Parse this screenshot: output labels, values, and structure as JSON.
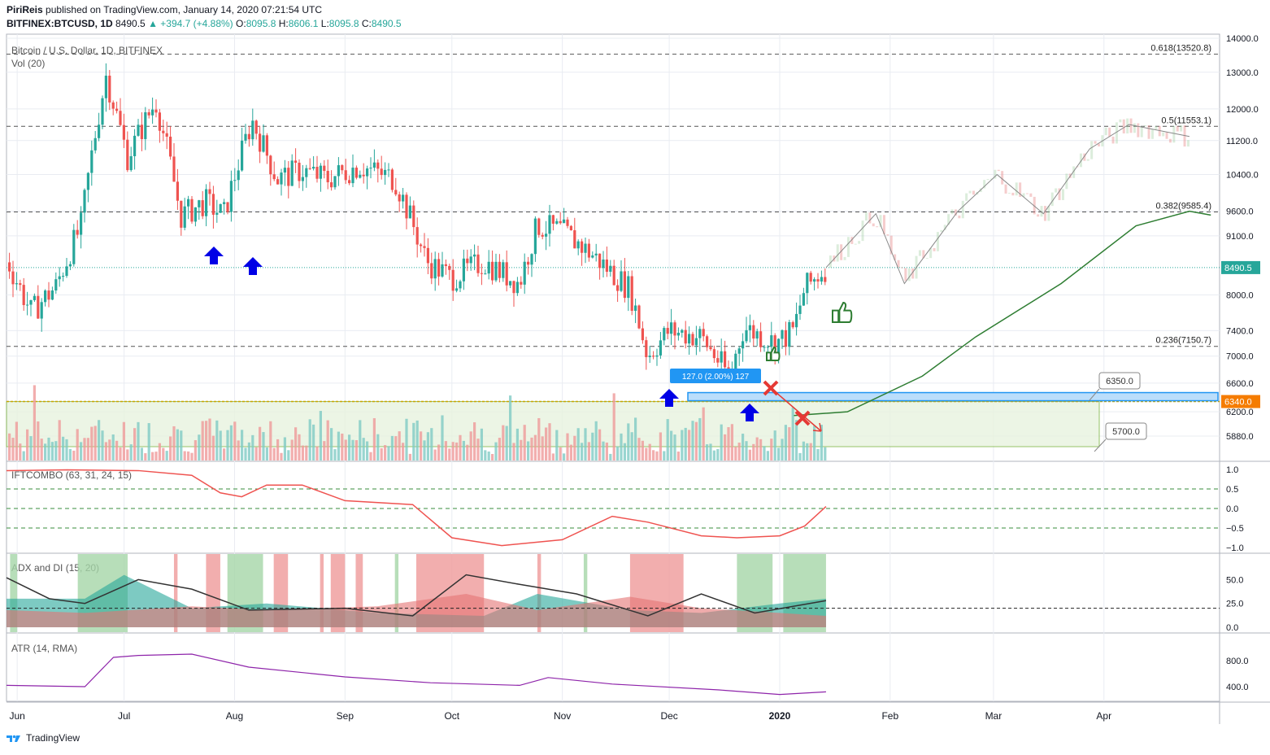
{
  "header": {
    "author": "PiriReis",
    "published": "published on TradingView.com, January 14, 2020 07:21:54 UTC",
    "symbol_line": "BITFINEX:BTCUSD, 1D",
    "last": "8490.5",
    "change": "▲ +394.7 (+4.88%)",
    "o_label": "O:",
    "o": "8095.8",
    "h_label": "H:",
    "h": "8606.1",
    "l_label": "L:",
    "l": "8095.8",
    "c_label": "C:",
    "c": "8490.5"
  },
  "footer": {
    "brand": "TradingView"
  },
  "colors": {
    "up": "#26a69a",
    "down": "#ef5350",
    "grid": "#e9ecf2",
    "accent": "#2196f3"
  },
  "chart_data": [
    {
      "type": "candlestick",
      "title": "Bitcoin / U.S. Dollar, 1D, BITFINEX",
      "volume_label": "Vol (20)",
      "x_ticks": [
        "Jun",
        "Jul",
        "Aug",
        "Sep",
        "Oct",
        "Nov",
        "Dec",
        "2020",
        "Feb",
        "Mar",
        "Apr"
      ],
      "y_ticks": [
        14000,
        13000,
        12000,
        11200,
        10400,
        9600,
        9100,
        8000,
        7400,
        7000,
        6600,
        6200,
        5880
      ],
      "ylim": [
        5600,
        14200
      ],
      "close_path": [
        [
          "2019-05-29",
          8650
        ],
        [
          "2019-06-05",
          7700
        ],
        [
          "2019-06-12",
          8150
        ],
        [
          "2019-06-19",
          9300
        ],
        [
          "2019-06-26",
          12900
        ],
        [
          "2019-07-02",
          10800
        ],
        [
          "2019-07-10",
          12200
        ],
        [
          "2019-07-17",
          9500
        ],
        [
          "2019-07-24",
          9800
        ],
        [
          "2019-07-29",
          9500
        ],
        [
          "2019-08-06",
          11700
        ],
        [
          "2019-08-13",
          10300
        ],
        [
          "2019-08-20",
          10500
        ],
        [
          "2019-08-27",
          10300
        ],
        [
          "2019-09-05",
          10600
        ],
        [
          "2019-09-15",
          10300
        ],
        [
          "2019-09-24",
          8600
        ],
        [
          "2019-10-01",
          8300
        ],
        [
          "2019-10-10",
          8600
        ],
        [
          "2019-10-20",
          8200
        ],
        [
          "2019-10-25",
          9300
        ],
        [
          "2019-11-01",
          9200
        ],
        [
          "2019-11-10",
          8700
        ],
        [
          "2019-11-20",
          8100
        ],
        [
          "2019-11-25",
          7000
        ],
        [
          "2019-12-01",
          7400
        ],
        [
          "2019-12-10",
          7300
        ],
        [
          "2019-12-18",
          6700
        ],
        [
          "2019-12-22",
          7450
        ],
        [
          "2019-12-31",
          7200
        ],
        [
          "2020-01-05",
          7400
        ],
        [
          "2020-01-08",
          8100
        ],
        [
          "2020-01-14",
          8490.5
        ]
      ],
      "projection_path": [
        [
          "2020-01-14",
          8490.5
        ],
        [
          "2020-01-28",
          9550
        ],
        [
          "2020-02-05",
          8200
        ],
        [
          "2020-02-20",
          9600
        ],
        [
          "2020-03-02",
          10400
        ],
        [
          "2020-03-15",
          9550
        ],
        [
          "2020-03-28",
          11000
        ],
        [
          "2020-04-08",
          11600
        ],
        [
          "2020-04-25",
          11300
        ]
      ],
      "fib_levels": [
        {
          "ratio": "0.618",
          "price": "13520.8",
          "label": "0.618(13520.8)"
        },
        {
          "ratio": "0.5",
          "price": "11553.1",
          "label": "0.5(11553.1)"
        },
        {
          "ratio": "0.382",
          "price": "9585.4",
          "label": "0.382(9585.4)"
        },
        {
          "ratio": "0.236",
          "price": "7150.7",
          "label": "0.236(7150.7)"
        }
      ],
      "price_labels": {
        "last": "8490.5",
        "support": "6340.0",
        "callout_1": "6350.0",
        "callout_2": "5700.0"
      },
      "measure_label": "127.0 (2.00%) 127"
    },
    {
      "type": "line",
      "title": "IFTCOMBO (63, 31, 24, 15)",
      "y_ticks": [
        "1.0",
        "0.5",
        "0.0",
        "-0.5",
        "-1.0"
      ],
      "ylim": [
        -1.0,
        1.0
      ],
      "levels": [
        0.5,
        0.0,
        -0.5
      ],
      "values": [
        [
          "2019-05-29",
          0.97
        ],
        [
          "2019-06-15",
          0.99
        ],
        [
          "2019-07-05",
          0.97
        ],
        [
          "2019-07-20",
          0.85
        ],
        [
          "2019-07-28",
          0.4
        ],
        [
          "2019-08-03",
          0.3
        ],
        [
          "2019-08-10",
          0.6
        ],
        [
          "2019-08-20",
          0.6
        ],
        [
          "2019-09-01",
          0.2
        ],
        [
          "2019-09-20",
          0.1
        ],
        [
          "2019-10-01",
          -0.75
        ],
        [
          "2019-10-15",
          -0.95
        ],
        [
          "2019-11-01",
          -0.8
        ],
        [
          "2019-11-15",
          -0.2
        ],
        [
          "2019-11-25",
          -0.35
        ],
        [
          "2019-12-10",
          -0.7
        ],
        [
          "2019-12-20",
          -0.75
        ],
        [
          "2020-01-01",
          -0.7
        ],
        [
          "2020-01-08",
          -0.45
        ],
        [
          "2020-01-14",
          0.05
        ]
      ]
    },
    {
      "type": "area",
      "title": "ADX and DI (15, 20)",
      "y_ticks": [
        "50.0",
        "25.0",
        "0.0"
      ],
      "ylim": [
        0,
        70
      ],
      "threshold": 20,
      "adx": [
        [
          "2019-05-29",
          52
        ],
        [
          "2019-06-10",
          30
        ],
        [
          "2019-06-20",
          25
        ],
        [
          "2019-07-05",
          50
        ],
        [
          "2019-07-20",
          40
        ],
        [
          "2019-08-05",
          18
        ],
        [
          "2019-09-01",
          20
        ],
        [
          "2019-09-20",
          12
        ],
        [
          "2019-10-05",
          55
        ],
        [
          "2019-10-20",
          45
        ],
        [
          "2019-11-05",
          35
        ],
        [
          "2019-11-25",
          12
        ],
        [
          "2019-12-10",
          35
        ],
        [
          "2019-12-25",
          15
        ],
        [
          "2020-01-14",
          28
        ]
      ],
      "di_plus": [
        [
          "2019-05-29",
          30
        ],
        [
          "2019-06-20",
          30
        ],
        [
          "2019-07-01",
          55
        ],
        [
          "2019-07-20",
          20
        ],
        [
          "2019-08-10",
          25
        ],
        [
          "2019-09-10",
          15
        ],
        [
          "2019-10-10",
          12
        ],
        [
          "2019-10-25",
          35
        ],
        [
          "2019-11-20",
          18
        ],
        [
          "2019-12-10",
          15
        ],
        [
          "2020-01-01",
          25
        ],
        [
          "2020-01-14",
          30
        ]
      ],
      "di_minus": [
        [
          "2019-05-29",
          18
        ],
        [
          "2019-06-20",
          15
        ],
        [
          "2019-07-20",
          22
        ],
        [
          "2019-08-10",
          18
        ],
        [
          "2019-09-10",
          22
        ],
        [
          "2019-10-05",
          35
        ],
        [
          "2019-10-25",
          18
        ],
        [
          "2019-11-20",
          32
        ],
        [
          "2019-12-10",
          20
        ],
        [
          "2020-01-01",
          15
        ],
        [
          "2020-01-14",
          12
        ]
      ]
    },
    {
      "type": "line",
      "title": "ATR (14, RMA)",
      "y_ticks": [
        "800.0",
        "400.0"
      ],
      "ylim": [
        150,
        1050
      ],
      "values": [
        [
          "2019-05-29",
          420
        ],
        [
          "2019-06-20",
          400
        ],
        [
          "2019-06-28",
          850
        ],
        [
          "2019-07-05",
          880
        ],
        [
          "2019-07-20",
          900
        ],
        [
          "2019-08-05",
          700
        ],
        [
          "2019-09-01",
          550
        ],
        [
          "2019-09-25",
          460
        ],
        [
          "2019-10-20",
          420
        ],
        [
          "2019-10-28",
          540
        ],
        [
          "2019-11-15",
          440
        ],
        [
          "2019-12-15",
          350
        ],
        [
          "2020-01-01",
          280
        ],
        [
          "2020-01-14",
          320
        ]
      ]
    }
  ]
}
